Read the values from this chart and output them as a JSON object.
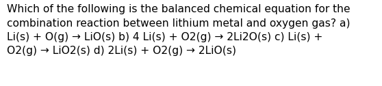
{
  "line1": "Which of the following is the balanced chemical equation for the",
  "line2": "combination reaction between lithium metal and oxygen gas? a)",
  "line3": "Li(s) + O(g) → LiO(s) b) 4 Li(s) + O2(g) → 2Li2O(s) c) Li(s) +",
  "line4": "O2(g) → LiO2(s) d) 2Li(s) + O2(g) → 2LiO(s)",
  "background_color": "#ffffff",
  "text_color": "#000000",
  "font_size": 11.2,
  "font_family": "DejaVu Sans",
  "fig_width": 5.58,
  "fig_height": 1.26,
  "dpi": 100
}
